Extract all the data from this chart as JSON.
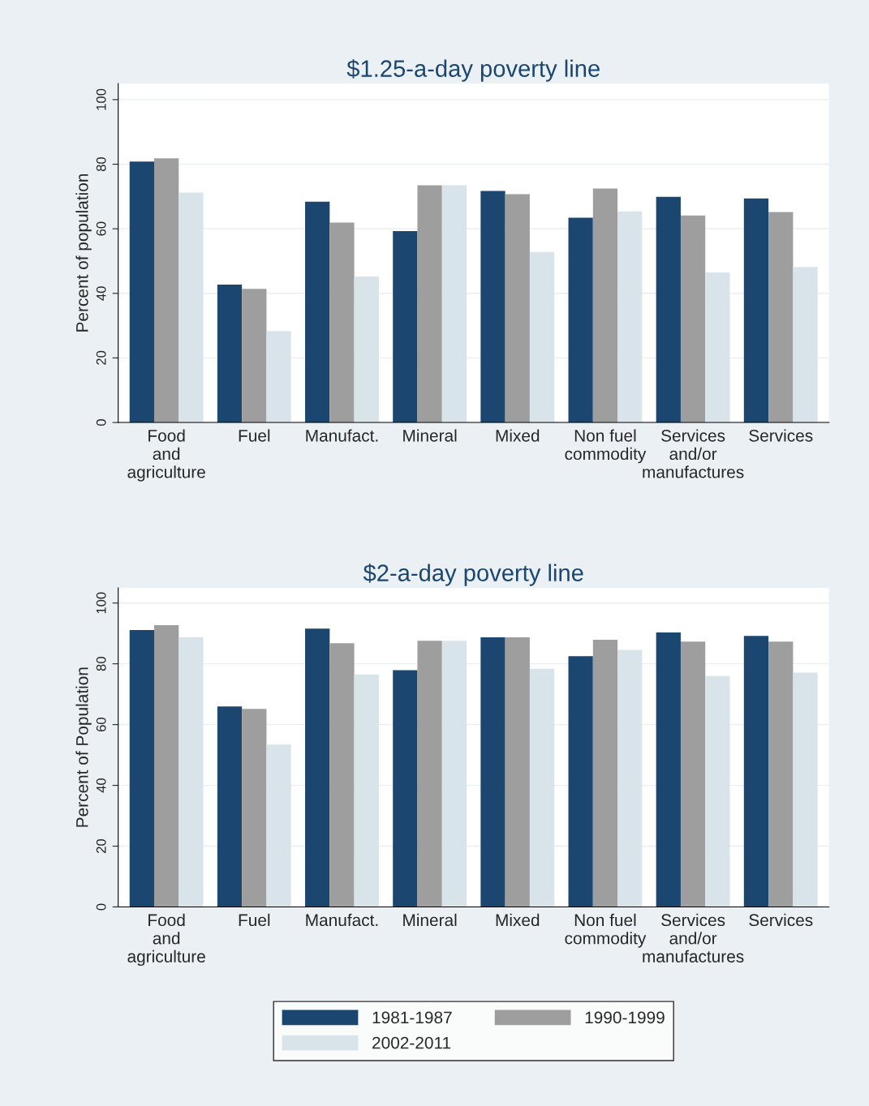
{
  "chart_data": [
    {
      "type": "bar",
      "title": "$1.25-a-day poverty line",
      "ylabel": "Percent of population",
      "categories": [
        "Food\nand\nagriculture",
        "Fuel",
        "Manufact.",
        "Mineral",
        "Mixed",
        "Non fuel\ncommodity",
        "Services\nand/or\nmanufactures",
        "Services"
      ],
      "series": [
        {
          "color": "#1a4670",
          "values": [
            80.8,
            42.7,
            68.4,
            59.3,
            71.7,
            63.4,
            69.9,
            69.4
          ]
        },
        {
          "color": "#9e9e9e",
          "values": [
            81.8,
            41.4,
            61.9,
            73.5,
            70.7,
            72.5,
            64.1,
            65.2
          ]
        },
        {
          "color": "#d8e4ea",
          "values": [
            71.2,
            28.3,
            45.2,
            73.5,
            52.8,
            65.4,
            46.5,
            48.2
          ]
        }
      ],
      "ylim": [
        0,
        105
      ],
      "yticks": [
        0,
        20,
        40,
        60,
        80,
        100
      ],
      "grid": "y"
    },
    {
      "type": "bar",
      "title": "$2-a-day poverty line",
      "ylabel": "Percent of Population",
      "categories": [
        "Food\nand\nagriculture",
        "Fuel",
        "Manufact.",
        "Mineral",
        "Mixed",
        "Non fuel\ncommodity",
        "Services\nand/or\nmanufactures",
        "Services"
      ],
      "series": [
        {
          "name": "1981-1987",
          "color": "#1a4670",
          "values": [
            91.1,
            66.0,
            91.6,
            77.9,
            88.7,
            82.5,
            90.3,
            89.2
          ]
        },
        {
          "name": "1990-1999",
          "color": "#9e9e9e",
          "values": [
            92.7,
            65.2,
            86.8,
            87.6,
            88.7,
            87.9,
            87.3,
            87.3
          ]
        },
        {
          "name": "2002-2011",
          "color": "#d8e4ea",
          "values": [
            88.7,
            53.4,
            76.5,
            87.6,
            78.4,
            84.6,
            76.0,
            77.1
          ]
        }
      ],
      "ylim": [
        0,
        105
      ],
      "yticks": [
        0,
        20,
        40,
        60,
        80,
        100
      ],
      "grid": "y",
      "legend": "bottom"
    }
  ]
}
